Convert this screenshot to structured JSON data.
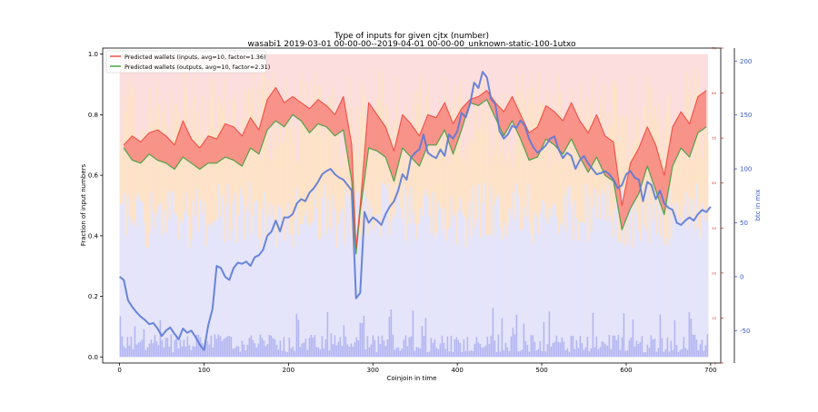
{
  "chart_data": {
    "type": "line",
    "title": "Type of inputs for given cjtx (number)",
    "subtitle": "wasabi1 2019-03-01 00-00-00--2019-04-01 00-00-00_unknown-static-100-1utxo",
    "xlabel": "Coinjoin in time",
    "ylabel": "Fraction of input numbers",
    "y2label": "btc in mix",
    "xlim": [
      -20,
      712
    ],
    "ylim": [
      -0.02,
      1.02
    ],
    "y2lim": [
      -80,
      212
    ],
    "y3lim": [
      0,
      70
    ],
    "x_ticks": [
      0,
      100,
      200,
      300,
      400,
      500,
      600,
      700
    ],
    "y_ticks": [
      0.0,
      0.2,
      0.4,
      0.6,
      0.8,
      1.0
    ],
    "y2_ticks": [
      -50,
      0,
      50,
      100,
      150,
      200
    ],
    "y3_ticks": [
      0,
      10,
      20,
      30,
      40,
      50,
      60,
      70
    ],
    "grid": false,
    "legend_position": "top-left",
    "colors": {
      "inputs": "#f0453a",
      "outputs": "#3f9e3f",
      "fill": "#f7857d",
      "fill_green": "#76c276",
      "btc": "#5b79d6",
      "blue_bars": "#b3b6f2",
      "orange_bars": "#fde6bf",
      "pink_bg": "#fbd3d3",
      "red_axis": "#d2301f",
      "blue_axis": "#3658c9"
    },
    "series": [
      {
        "name": "Predicted wallets (inputs, avg=10, factor=1.36)",
        "x": [
          5,
          15,
          25,
          35,
          45,
          55,
          65,
          75,
          85,
          95,
          105,
          115,
          125,
          135,
          145,
          155,
          165,
          175,
          185,
          195,
          205,
          215,
          225,
          235,
          245,
          255,
          265,
          275,
          280,
          285,
          295,
          305,
          315,
          325,
          335,
          345,
          355,
          365,
          375,
          385,
          395,
          405,
          415,
          425,
          435,
          445,
          455,
          465,
          475,
          485,
          495,
          505,
          515,
          525,
          535,
          545,
          555,
          565,
          575,
          585,
          595,
          605,
          615,
          625,
          635,
          645,
          655,
          665,
          675,
          685,
          695
        ],
        "values": [
          0.7,
          0.73,
          0.71,
          0.74,
          0.75,
          0.73,
          0.7,
          0.78,
          0.72,
          0.69,
          0.73,
          0.72,
          0.77,
          0.76,
          0.73,
          0.79,
          0.75,
          0.85,
          0.89,
          0.84,
          0.86,
          0.84,
          0.82,
          0.85,
          0.83,
          0.8,
          0.86,
          0.7,
          0.36,
          0.5,
          0.84,
          0.8,
          0.76,
          0.68,
          0.8,
          0.77,
          0.73,
          0.8,
          0.79,
          0.84,
          0.77,
          0.82,
          0.85,
          0.86,
          0.88,
          0.84,
          0.81,
          0.86,
          0.8,
          0.74,
          0.76,
          0.83,
          0.81,
          0.78,
          0.84,
          0.78,
          0.74,
          0.8,
          0.73,
          0.71,
          0.5,
          0.64,
          0.69,
          0.76,
          0.7,
          0.6,
          0.76,
          0.81,
          0.77,
          0.86,
          0.88
        ]
      },
      {
        "name": "Predicted wallets (outputs, avg=10, factor=2.31)",
        "x": [
          5,
          15,
          25,
          35,
          45,
          55,
          65,
          75,
          85,
          95,
          105,
          115,
          125,
          135,
          145,
          155,
          165,
          175,
          185,
          195,
          205,
          215,
          225,
          235,
          245,
          255,
          265,
          275,
          280,
          285,
          295,
          305,
          315,
          325,
          335,
          345,
          355,
          365,
          375,
          385,
          395,
          405,
          415,
          425,
          435,
          445,
          455,
          465,
          475,
          485,
          495,
          505,
          515,
          525,
          535,
          545,
          555,
          565,
          575,
          585,
          595,
          605,
          615,
          625,
          635,
          645,
          655,
          665,
          675,
          685,
          695
        ],
        "values": [
          0.69,
          0.65,
          0.64,
          0.67,
          0.65,
          0.64,
          0.62,
          0.66,
          0.64,
          0.62,
          0.64,
          0.64,
          0.66,
          0.65,
          0.63,
          0.69,
          0.67,
          0.75,
          0.78,
          0.76,
          0.8,
          0.78,
          0.74,
          0.77,
          0.76,
          0.73,
          0.75,
          0.58,
          0.34,
          0.48,
          0.69,
          0.68,
          0.66,
          0.58,
          0.69,
          0.66,
          0.63,
          0.7,
          0.7,
          0.75,
          0.67,
          0.75,
          0.84,
          0.83,
          0.85,
          0.79,
          0.73,
          0.78,
          0.72,
          0.65,
          0.66,
          0.72,
          0.7,
          0.67,
          0.72,
          0.66,
          0.61,
          0.66,
          0.6,
          0.58,
          0.42,
          0.49,
          0.54,
          0.63,
          0.55,
          0.47,
          0.63,
          0.69,
          0.66,
          0.74,
          0.76
        ]
      },
      {
        "name": "btc in mix",
        "axis": "y2",
        "x": [
          0,
          5,
          10,
          15,
          20,
          25,
          30,
          35,
          40,
          45,
          50,
          55,
          60,
          65,
          70,
          75,
          80,
          85,
          90,
          95,
          100,
          105,
          110,
          115,
          120,
          125,
          130,
          135,
          140,
          145,
          150,
          155,
          160,
          165,
          170,
          175,
          180,
          185,
          190,
          195,
          200,
          205,
          210,
          215,
          220,
          225,
          230,
          235,
          240,
          245,
          250,
          255,
          260,
          265,
          270,
          275,
          280,
          285,
          290,
          295,
          300,
          305,
          310,
          315,
          320,
          325,
          330,
          335,
          340,
          345,
          350,
          355,
          360,
          365,
          370,
          375,
          380,
          385,
          390,
          395,
          400,
          405,
          410,
          415,
          420,
          425,
          430,
          435,
          440,
          445,
          450,
          455,
          460,
          465,
          470,
          475,
          480,
          485,
          490,
          495,
          500,
          505,
          510,
          515,
          520,
          525,
          530,
          535,
          540,
          545,
          550,
          555,
          560,
          565,
          570,
          575,
          580,
          585,
          590,
          595,
          600,
          605,
          610,
          615,
          620,
          625,
          630,
          635,
          640,
          645,
          650,
          655,
          660,
          665,
          670,
          675,
          680,
          685,
          690,
          695,
          700
        ],
        "values": [
          0,
          -3,
          -22,
          -28,
          -33,
          -37,
          -40,
          -44,
          -43,
          -48,
          -55,
          -50,
          -47,
          -53,
          -58,
          -48,
          -52,
          -50,
          -56,
          -63,
          -68,
          -45,
          -30,
          10,
          8,
          0,
          -3,
          8,
          13,
          12,
          14,
          10,
          18,
          20,
          25,
          38,
          42,
          52,
          42,
          55,
          55,
          58,
          68,
          72,
          70,
          78,
          82,
          88,
          95,
          98,
          100,
          95,
          92,
          90,
          85,
          80,
          -20,
          -15,
          60,
          50,
          55,
          52,
          48,
          58,
          65,
          70,
          80,
          95,
          90,
          110,
          115,
          118,
          132,
          115,
          112,
          110,
          118,
          112,
          132,
          128,
          135,
          152,
          148,
          160,
          180,
          175,
          190,
          185,
          165,
          160,
          135,
          128,
          132,
          140,
          138,
          145,
          140,
          128,
          120,
          115,
          118,
          122,
          128,
          130,
          118,
          110,
          115,
          112,
          100,
          108,
          112,
          105,
          100,
          95,
          96,
          98,
          95,
          90,
          82,
          85,
          95,
          98,
          92,
          90,
          70,
          88,
          85,
          72,
          80,
          68,
          64,
          62,
          50,
          48,
          52,
          55,
          52,
          58,
          62,
          60,
          65
        ]
      }
    ]
  }
}
